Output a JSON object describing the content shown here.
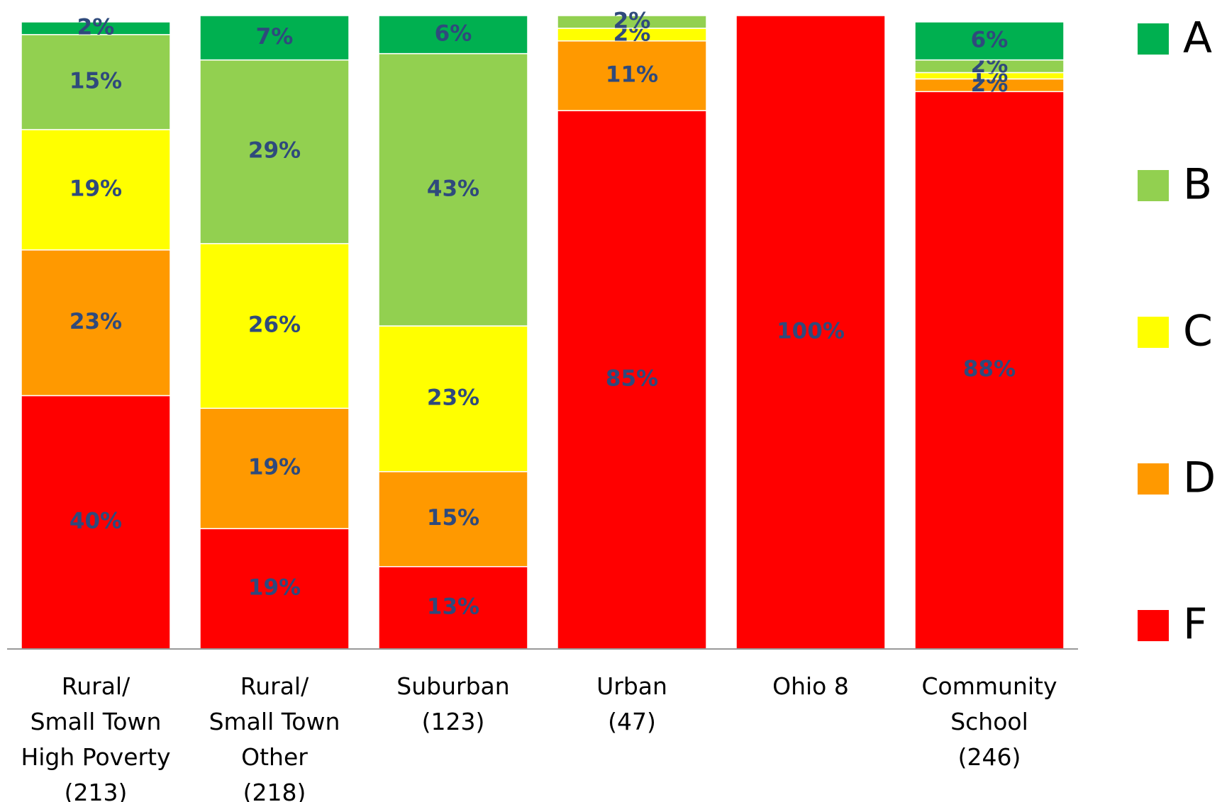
{
  "chart_data": {
    "type": "stacked_bar",
    "categories": [
      "Rural/\nSmall Town\nHigh Poverty\n(213)",
      "Rural/\nSmall Town\nOther\n(218)",
      "Suburban\n(123)",
      "Urban\n(47)",
      "Ohio 8",
      "Community\nSchool\n(246)"
    ],
    "ylim": [
      0,
      100
    ],
    "series": [
      {
        "name": "F",
        "color": "#ff0000",
        "values": [
          40,
          19,
          13,
          85,
          100,
          88
        ],
        "value_labels": [
          "40%",
          "19%",
          "13%",
          "85%",
          "100%",
          "88%"
        ]
      },
      {
        "name": "D",
        "color": "#ff9900",
        "values": [
          23,
          19,
          15,
          11,
          null,
          2
        ],
        "value_labels": [
          "23%",
          "19%",
          "15%",
          "11%",
          null,
          "2%"
        ]
      },
      {
        "name": "C",
        "color": "#ffff00",
        "values": [
          19,
          26,
          23,
          2,
          null,
          1
        ],
        "value_labels": [
          "19%",
          "26%",
          "23%",
          "2%",
          null,
          "1%"
        ]
      },
      {
        "name": "B",
        "color": "#92d050",
        "values": [
          15,
          29,
          43,
          2,
          null,
          2
        ],
        "value_labels": [
          "15%",
          "29%",
          "43%",
          "2%",
          null,
          "2%"
        ]
      },
      {
        "name": "A",
        "color": "#00b050",
        "values": [
          2,
          7,
          6,
          null,
          null,
          6
        ],
        "value_labels": [
          "2%",
          "7%",
          "6%",
          null,
          null,
          "6%"
        ]
      }
    ]
  }
}
